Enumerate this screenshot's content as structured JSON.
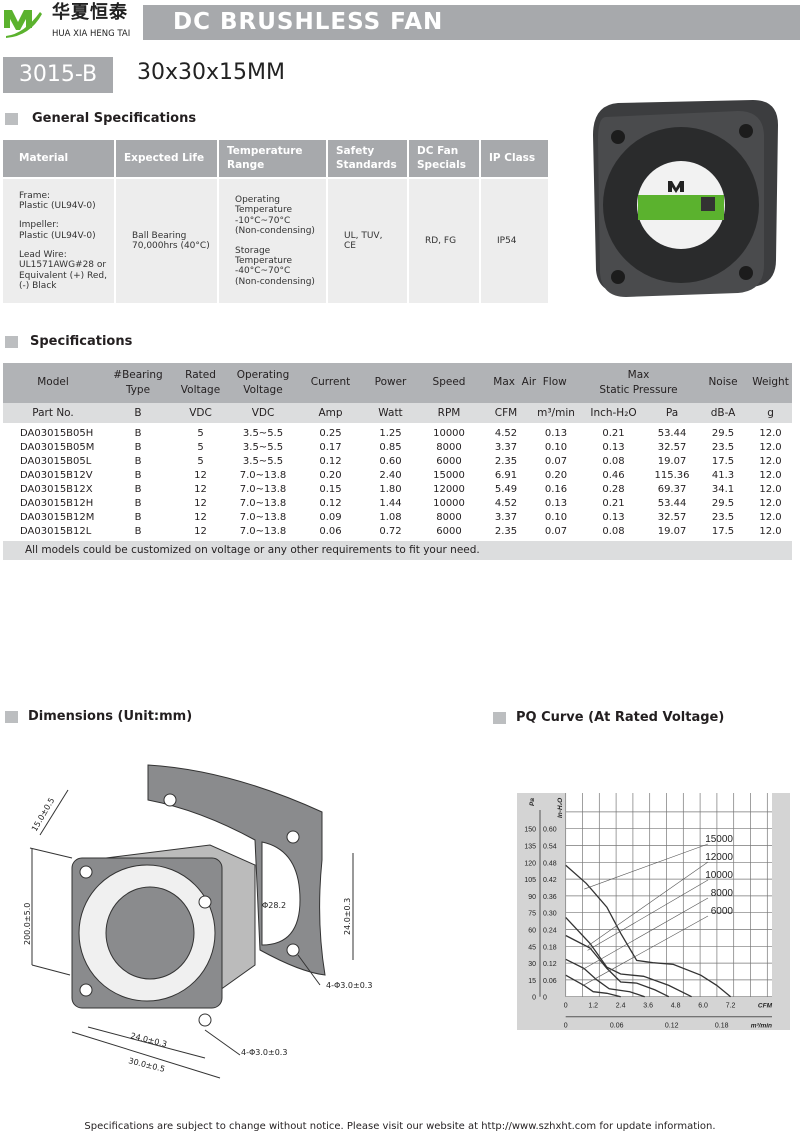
{
  "header": {
    "logo_cn": "华夏恒泰",
    "logo_en": "HUA XIA HENG TAI",
    "title": "DC BRUSHLESS FAN",
    "model": "3015-B",
    "size": "30x30x15MM",
    "brand_green": "#5bb22e"
  },
  "general": {
    "heading": "General Specifications",
    "headers": [
      "Material",
      "Expected Life",
      "Temperature Range",
      "Safety Standards",
      "DC Fan Specials",
      "IP Class"
    ],
    "material": [
      "Frame:\nPlastic (UL94V-0)",
      "Impeller:\nPlastic (UL94V-0)",
      "Lead Wire:\nUL1571AWG#28 or\nEquivalent (+) Red,\n(-) Black"
    ],
    "life": "Ball Bearing\n70,000hrs (40°C)",
    "temperature": [
      "Operating\nTemperature\n-10°C~70°C\n (Non-condensing)",
      "Storage\nTemperature\n-40°C~70°C\n(Non-condensing)"
    ],
    "safety": "UL, TUV,\nCE",
    "specials": "RD, FG",
    "ip": "IP54"
  },
  "specs": {
    "heading": "Specifications",
    "headers": [
      "Model",
      "#Bearing\nType",
      "Rated\nVoltage",
      "Operating\nVoltage",
      "Current",
      "Power",
      "Speed",
      "Max  Air  Flow",
      "Max\nStatic  Pressure",
      "Noise",
      "Weight"
    ],
    "units": [
      "Part No.",
      "B",
      "VDC",
      "VDC",
      "Amp",
      "Watt",
      "RPM",
      "CFM",
      "m³/min",
      "Inch-H₂O",
      "Pa",
      "dB-A",
      "g"
    ],
    "rows": [
      [
        "DA03015B05H",
        "B",
        "5",
        "3.5~5.5",
        "0.25",
        "1.25",
        "10000",
        "4.52",
        "0.13",
        "0.21",
        "53.44",
        "29.5",
        "12.0"
      ],
      [
        "DA03015B05M",
        "B",
        "5",
        "3.5~5.5",
        "0.17",
        "0.85",
        "8000",
        "3.37",
        "0.10",
        "0.13",
        "32.57",
        "23.5",
        "12.0"
      ],
      [
        "DA03015B05L",
        "B",
        "5",
        "3.5~5.5",
        "0.12",
        "0.60",
        "6000",
        "2.35",
        "0.07",
        "0.08",
        "19.07",
        "17.5",
        "12.0"
      ],
      [
        "DA03015B12V",
        "B",
        "12",
        "7.0~13.8",
        "0.20",
        "2.40",
        "15000",
        "6.91",
        "0.20",
        "0.46",
        "115.36",
        "41.3",
        "12.0"
      ],
      [
        "DA03015B12X",
        "B",
        "12",
        "7.0~13.8",
        "0.15",
        "1.80",
        "12000",
        "5.49",
        "0.16",
        "0.28",
        "69.37",
        "34.1",
        "12.0"
      ],
      [
        "DA03015B12H",
        "B",
        "12",
        "7.0~13.8",
        "0.12",
        "1.44",
        "10000",
        "4.52",
        "0.13",
        "0.21",
        "53.44",
        "29.5",
        "12.0"
      ],
      [
        "DA03015B12M",
        "B",
        "12",
        "7.0~13.8",
        "0.09",
        "1.08",
        "8000",
        "3.37",
        "0.10",
        "0.13",
        "32.57",
        "23.5",
        "12.0"
      ],
      [
        "DA03015B12L",
        "B",
        "12",
        "7.0~13.8",
        "0.06",
        "0.72",
        "6000",
        "2.35",
        "0.07",
        "0.08",
        "19.07",
        "17.5",
        "12.0"
      ]
    ],
    "note": "All models could be customized on voltage or any other requirements to fit your need."
  },
  "dimensions": {
    "heading": "Dimensions (Unit:mm)",
    "labels": {
      "depth": "15.0±0.5",
      "lead": "200.0±5.0",
      "hole_pitch_v": "24.0±0.3",
      "bore": "Φ28.2",
      "holes_back": "4-Φ3.0±0.3",
      "hole_pitch_h": "24.0±0.3",
      "width": "30.0±0.5",
      "holes_front": "4-Φ3.0±0.3"
    }
  },
  "pq": {
    "heading": "PQ Curve (At Rated Voltage)"
  },
  "chart_data": {
    "type": "line",
    "title": "",
    "xlabel": "CFM",
    "x2label": "m³/min",
    "ylabel": "Pa",
    "y2label": "In-H₂O",
    "xticks": [
      "0",
      "1.2",
      "2.4",
      "3.6",
      "4.8",
      "6.0",
      "7.2"
    ],
    "x2ticks": [
      "0",
      "0.06",
      "0.12",
      "0.18"
    ],
    "yticks": [
      "0",
      "15",
      "30",
      "45",
      "60",
      "75",
      "90",
      "105",
      "120",
      "135",
      "150"
    ],
    "y2ticks": [
      "0",
      "0.06",
      "0.12",
      "0.18",
      "0.24",
      "0.30",
      "0.36",
      "0.42",
      "0.48",
      "0.54",
      "0.60"
    ],
    "xlim": [
      0,
      7.8
    ],
    "ylim": [
      0,
      165
    ],
    "grid": true,
    "series": [
      {
        "name": "15000",
        "points": [
          [
            0,
            116
          ],
          [
            0.9,
            100
          ],
          [
            1.8,
            79
          ],
          [
            2.4,
            56
          ],
          [
            3.1,
            32
          ],
          [
            3.8,
            30
          ],
          [
            4.7,
            28.5
          ],
          [
            5.9,
            19
          ],
          [
            6.6,
            10
          ],
          [
            7.2,
            0
          ]
        ]
      },
      {
        "name": "12000",
        "points": [
          [
            0,
            70
          ],
          [
            1.06,
            47
          ],
          [
            1.8,
            26
          ],
          [
            2.4,
            20
          ],
          [
            3.4,
            18
          ],
          [
            4.5,
            10
          ],
          [
            5.5,
            0
          ]
        ]
      },
      {
        "name": "10000",
        "points": [
          [
            0,
            54
          ],
          [
            1.06,
            43
          ],
          [
            1.8,
            25
          ],
          [
            2.4,
            13
          ],
          [
            3.1,
            12
          ],
          [
            3.9,
            6
          ],
          [
            4.5,
            0
          ]
        ]
      },
      {
        "name": "8000",
        "points": [
          [
            0,
            33
          ],
          [
            0.8,
            25
          ],
          [
            1.35,
            15
          ],
          [
            1.9,
            7
          ],
          [
            2.8,
            4.4
          ],
          [
            3.45,
            0
          ]
        ]
      },
      {
        "name": "6000",
        "points": [
          [
            0,
            19
          ],
          [
            0.8,
            10
          ],
          [
            1.2,
            4.4
          ],
          [
            1.8,
            3
          ],
          [
            2.4,
            0
          ]
        ]
      }
    ]
  },
  "footer": "Specifications are subject to change without notice. Please visit our website at http://www.szhxht.com for update information."
}
